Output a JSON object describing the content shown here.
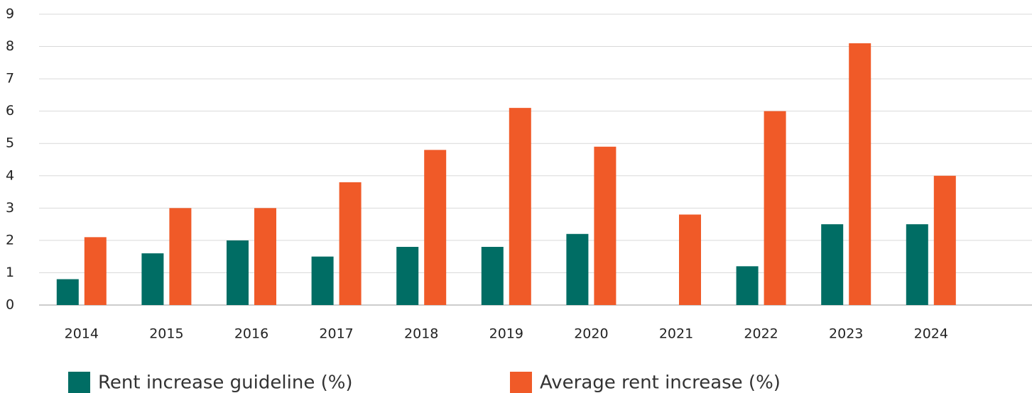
{
  "chart_data": {
    "type": "bar",
    "categories": [
      "2014",
      "2015",
      "2016",
      "2017",
      "2018",
      "2019",
      "2020",
      "2021",
      "2022",
      "2023",
      "2024"
    ],
    "series": [
      {
        "name": "Rent increase guideline (%)",
        "color": "#006d64",
        "values": [
          0.8,
          1.6,
          2.0,
          1.5,
          1.8,
          1.8,
          2.2,
          0,
          1.2,
          2.5,
          2.5
        ]
      },
      {
        "name": "Average rent increase (%)",
        "color": "#f05a28",
        "values": [
          2.1,
          3.0,
          3.0,
          3.8,
          4.8,
          6.1,
          4.9,
          2.8,
          6.0,
          8.1,
          4.0
        ]
      }
    ],
    "ylim": [
      0,
      9
    ],
    "yticks": [
      0,
      1,
      2,
      3,
      4,
      5,
      6,
      7,
      8,
      9
    ],
    "grid": true
  }
}
